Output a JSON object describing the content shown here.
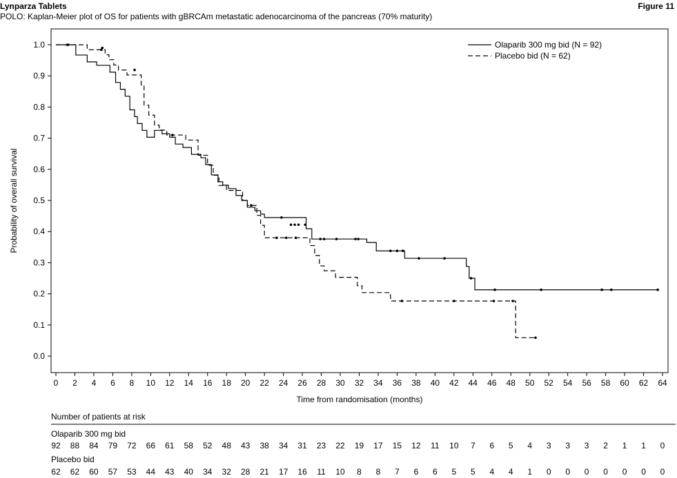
{
  "header": {
    "document_title": "Lynparza Tablets",
    "figure_label": "Figure 11"
  },
  "chart_data": {
    "type": "line",
    "title": "POLO: Kaplan-Meier plot of OS for patients with gBRCAm metastatic adenocarcinoma of the pancreas (70% maturity)",
    "xlabel": "Time from randomisation (months)",
    "ylabel": "Probability of overall survival",
    "xlim": [
      0,
      64
    ],
    "ylim": [
      0,
      1
    ],
    "x_ticks": [
      0,
      2,
      4,
      6,
      8,
      10,
      12,
      14,
      16,
      18,
      20,
      22,
      24,
      26,
      28,
      30,
      32,
      34,
      36,
      38,
      40,
      42,
      44,
      46,
      48,
      50,
      52,
      54,
      56,
      58,
      60,
      62,
      64
    ],
    "y_ticks": [
      "0.0",
      "0.1",
      "0.2",
      "0.3",
      "0.4",
      "0.5",
      "0.6",
      "0.7",
      "0.8",
      "0.9",
      "1.0"
    ],
    "grid": false,
    "legend_position": "top-right",
    "series": [
      {
        "name": "Olaparib 300 mg bid (N = 92)",
        "style": "solid",
        "color": "#000000",
        "steps": [
          [
            0,
            1.0
          ],
          [
            2.1,
            0.967
          ],
          [
            3.3,
            0.945
          ],
          [
            4.3,
            0.934
          ],
          [
            5.7,
            0.912
          ],
          [
            6.3,
            0.879
          ],
          [
            6.8,
            0.857
          ],
          [
            7.3,
            0.835
          ],
          [
            7.8,
            0.791
          ],
          [
            8.3,
            0.769
          ],
          [
            8.6,
            0.747
          ],
          [
            9.1,
            0.725
          ],
          [
            9.6,
            0.703
          ],
          [
            10.4,
            0.725
          ],
          [
            11.2,
            0.714
          ],
          [
            12.0,
            0.703
          ],
          [
            12.6,
            0.681
          ],
          [
            13.4,
            0.67
          ],
          [
            14.3,
            0.648
          ],
          [
            15.3,
            0.637
          ],
          [
            15.8,
            0.615
          ],
          [
            16.4,
            0.582
          ],
          [
            17.1,
            0.56
          ],
          [
            17.6,
            0.549
          ],
          [
            18.2,
            0.538
          ],
          [
            19.0,
            0.516
          ],
          [
            19.6,
            0.5
          ],
          [
            20.2,
            0.478
          ],
          [
            21.0,
            0.467
          ],
          [
            21.6,
            0.456
          ],
          [
            22.0,
            0.445
          ],
          [
            26.4,
            0.409
          ],
          [
            27.0,
            0.376
          ],
          [
            28.8,
            0.376
          ],
          [
            32.8,
            0.365
          ],
          [
            33.8,
            0.338
          ],
          [
            36.8,
            0.314
          ],
          [
            43.3,
            0.288
          ],
          [
            43.6,
            0.25
          ],
          [
            44.2,
            0.213
          ],
          [
            63.5,
            0.213
          ]
        ],
        "censored": [
          [
            1.2,
            1.0
          ],
          [
            4.9,
            0.99
          ],
          [
            23.8,
            0.445
          ],
          [
            24.8,
            0.422
          ],
          [
            25.2,
            0.422
          ],
          [
            25.6,
            0.422
          ],
          [
            26.3,
            0.422
          ],
          [
            27.9,
            0.376
          ],
          [
            28.3,
            0.376
          ],
          [
            29.6,
            0.376
          ],
          [
            31.6,
            0.376
          ],
          [
            31.9,
            0.376
          ],
          [
            35.3,
            0.338
          ],
          [
            36.0,
            0.338
          ],
          [
            36.6,
            0.338
          ],
          [
            38.3,
            0.314
          ],
          [
            41.0,
            0.314
          ],
          [
            43.8,
            0.25
          ],
          [
            46.3,
            0.213
          ],
          [
            51.2,
            0.213
          ],
          [
            57.6,
            0.213
          ],
          [
            58.6,
            0.213
          ],
          [
            63.5,
            0.213
          ]
        ]
      },
      {
        "name": "Placebo bid (N = 62)",
        "style": "dashed",
        "color": "#000000",
        "steps": [
          [
            0,
            1.0
          ],
          [
            3.3,
            0.984
          ],
          [
            5.2,
            0.968
          ],
          [
            5.6,
            0.952
          ],
          [
            6.1,
            0.935
          ],
          [
            6.6,
            0.919
          ],
          [
            7.5,
            0.903
          ],
          [
            9.0,
            0.871
          ],
          [
            9.3,
            0.806
          ],
          [
            9.8,
            0.774
          ],
          [
            10.4,
            0.742
          ],
          [
            10.9,
            0.726
          ],
          [
            11.7,
            0.71
          ],
          [
            12.3,
            0.71
          ],
          [
            13.7,
            0.694
          ],
          [
            15.0,
            0.645
          ],
          [
            16.0,
            0.613
          ],
          [
            16.6,
            0.581
          ],
          [
            17.2,
            0.548
          ],
          [
            18.0,
            0.532
          ],
          [
            19.7,
            0.5
          ],
          [
            20.2,
            0.484
          ],
          [
            21.2,
            0.452
          ],
          [
            21.6,
            0.42
          ],
          [
            22.0,
            0.38
          ],
          [
            26.8,
            0.355
          ],
          [
            27.3,
            0.323
          ],
          [
            27.8,
            0.29
          ],
          [
            28.3,
            0.274
          ],
          [
            29.5,
            0.253
          ],
          [
            31.8,
            0.226
          ],
          [
            32.3,
            0.204
          ],
          [
            35.3,
            0.177
          ],
          [
            48.5,
            0.059
          ],
          [
            50.6,
            0.059
          ]
        ],
        "censored": [
          [
            1.3,
            1.0
          ],
          [
            4.8,
            0.984
          ],
          [
            8.3,
            0.919
          ],
          [
            12.3,
            0.71
          ],
          [
            20.6,
            0.484
          ],
          [
            23.3,
            0.38
          ],
          [
            24.3,
            0.38
          ],
          [
            25.3,
            0.38
          ],
          [
            36.5,
            0.177
          ],
          [
            42.0,
            0.177
          ],
          [
            46.2,
            0.177
          ],
          [
            48.2,
            0.177
          ],
          [
            50.6,
            0.059
          ]
        ]
      }
    ],
    "risk_table": {
      "title": "Number of patients at risk",
      "groups": [
        {
          "name": "Olaparib 300 mg bid",
          "counts": [
            "92",
            "88",
            "84",
            "79",
            "72",
            "66",
            "61",
            "58",
            "52",
            "48",
            "43",
            "38",
            "34",
            "31",
            "23",
            "22",
            "19",
            "17",
            "15",
            "12",
            "11",
            "10",
            "7",
            "6",
            "5",
            "4",
            "3",
            "3",
            "3",
            "2",
            "1",
            "1",
            "0"
          ]
        },
        {
          "name": "Placebo bid",
          "counts": [
            "62",
            "62",
            "60",
            "57",
            "53",
            "44",
            "43",
            "40",
            "34",
            "32",
            "28",
            "21",
            "17",
            "16",
            "11",
            "10",
            "8",
            "8",
            "7",
            "6",
            "6",
            "5",
            "5",
            "4",
            "4",
            "1",
            "0",
            "0",
            "0",
            "0",
            "0",
            "0",
            "0"
          ]
        }
      ]
    }
  }
}
